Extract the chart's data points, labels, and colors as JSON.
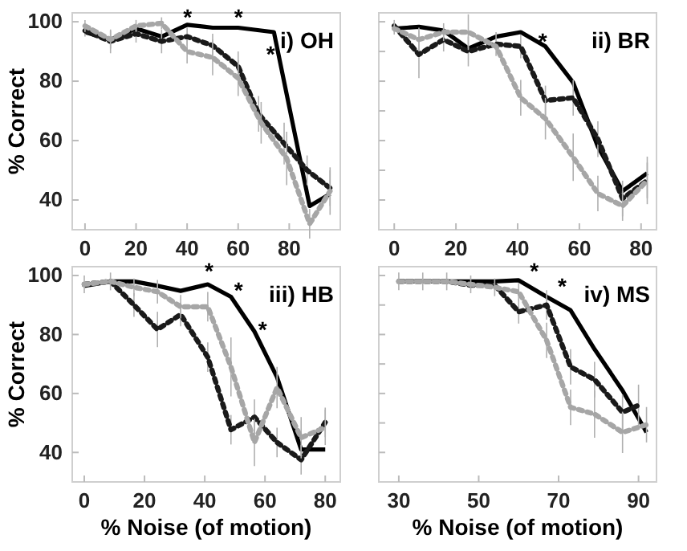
{
  "chart_data": [
    {
      "type": "line",
      "ylabel": "% Correct",
      "xlim": [
        -5,
        100
      ],
      "ylim": [
        30,
        103
      ],
      "xticks": [
        0,
        20,
        40,
        60,
        80
      ],
      "yticks": [
        40,
        60,
        80,
        100
      ],
      "annotations": [
        "i) OH",
        "*",
        "*",
        "*"
      ],
      "series": [
        {
          "color": "#000000",
          "line_style": "solid",
          "x": [
            0,
            10,
            20,
            30,
            40,
            50,
            60,
            74,
            88,
            96
          ],
          "values": [
            96.5,
            94,
            97.7,
            95,
            99,
            98,
            98,
            96.5,
            38,
            42
          ]
        },
        {
          "color": "#1a1a1a",
          "line_style": "dotted",
          "x": [
            0,
            10,
            20,
            30,
            40,
            50,
            60,
            68,
            78,
            87,
            96
          ],
          "values": [
            97,
            93.4,
            96,
            93.4,
            95,
            92,
            85,
            69,
            59,
            50,
            44
          ],
          "errors": [
            2,
            4,
            3,
            4,
            3,
            4,
            5,
            6,
            7,
            5,
            6
          ]
        },
        {
          "color": "#a6a6a6",
          "line_style": "dotted",
          "x": [
            0,
            10,
            20,
            30,
            40,
            50,
            60,
            69,
            79,
            88,
            96
          ],
          "values": [
            98.6,
            94,
            98.6,
            99.5,
            90,
            88,
            81,
            66,
            54,
            32,
            43
          ],
          "errors": [
            2,
            3,
            2,
            2,
            4,
            6,
            6,
            7,
            9,
            5,
            8
          ]
        }
      ]
    },
    {
      "type": "line",
      "xlim": [
        -5,
        85
      ],
      "ylim": [
        30,
        103
      ],
      "xticks": [
        0,
        20,
        40,
        60,
        80
      ],
      "yticks": [
        40,
        50,
        60,
        70,
        80,
        90,
        100
      ],
      "tick_labels": "x",
      "annotations": [
        "ii) BR",
        "*"
      ],
      "series": [
        {
          "color": "#000000",
          "line_style": "solid",
          "x": [
            0,
            8,
            16,
            24,
            33,
            41,
            49,
            58,
            66,
            74,
            82
          ],
          "values": [
            97.7,
            98.3,
            97,
            91,
            95,
            96.5,
            91.7,
            79.5,
            58,
            43,
            49
          ]
        },
        {
          "color": "#1a1a1a",
          "line_style": "dotted",
          "x": [
            0,
            8,
            16,
            24,
            33,
            41,
            49,
            58,
            66,
            74,
            82
          ],
          "values": [
            98.6,
            89,
            94,
            90,
            92.5,
            91.7,
            73.5,
            74.4,
            60.5,
            40.5,
            46.6
          ],
          "errors": [
            2,
            8,
            4,
            5,
            4,
            4,
            5,
            6,
            6,
            6,
            8
          ]
        },
        {
          "color": "#a6a6a6",
          "line_style": "dotted",
          "x": [
            0,
            8,
            16,
            24,
            33,
            41,
            49,
            58,
            66,
            74,
            82
          ],
          "values": [
            97.7,
            94,
            96.5,
            96.5,
            91.7,
            74.4,
            67.4,
            54.4,
            42.2,
            38,
            46.6
          ],
          "errors": [
            2,
            4,
            3,
            6,
            null,
            6,
            7,
            8,
            6,
            5,
            6
          ]
        }
      ]
    },
    {
      "type": "line",
      "xlabel": "% Noise (of motion)",
      "ylabel": "% Correct",
      "xlim": [
        -4,
        85
      ],
      "ylim": [
        30,
        103
      ],
      "xticks": [
        0,
        20,
        40,
        60,
        80
      ],
      "yticks": [
        40,
        60,
        80,
        100
      ],
      "annotations": [
        "iii) HB",
        "*",
        "*",
        "*"
      ],
      "series": [
        {
          "color": "#000000",
          "line_style": "solid",
          "x": [
            0,
            8.7,
            16.5,
            24.3,
            32,
            41,
            48.7,
            56.5,
            64,
            72,
            80
          ],
          "values": [
            96.5,
            98,
            98,
            96.5,
            94.8,
            97,
            92.8,
            81,
            65.5,
            41,
            41
          ]
        },
        {
          "color": "#1a1a1a",
          "line_style": "dotted",
          "x": [
            0,
            8.7,
            16.5,
            24.3,
            32,
            41,
            48.7,
            56.5,
            64,
            72,
            80
          ],
          "values": [
            97,
            98,
            90,
            81.7,
            86.8,
            72.3,
            47.7,
            52,
            43.4,
            37.5,
            50.2
          ],
          "errors": [
            null,
            null,
            4,
            6,
            4,
            5,
            5,
            6,
            5,
            5,
            5
          ]
        },
        {
          "color": "#a6a6a6",
          "line_style": "dotted",
          "x": [
            0,
            8.7,
            16.5,
            24.3,
            32,
            41,
            48.7,
            56.5,
            64,
            72,
            80
          ],
          "values": [
            97,
            98,
            96,
            94.5,
            89.4,
            89.4,
            69,
            43.4,
            62,
            45,
            48.5
          ],
          "errors": [
            3,
            3,
            3,
            4,
            4,
            5,
            10,
            8,
            7,
            7,
            6
          ]
        }
      ]
    },
    {
      "type": "line",
      "xlabel": "% Noise (of motion)",
      "xlim": [
        25,
        94.5
      ],
      "ylim": [
        30,
        103
      ],
      "xticks": [
        30,
        50,
        70,
        90
      ],
      "yticks": [
        40,
        50,
        60,
        70,
        80,
        90,
        100
      ],
      "tick_labels": "x",
      "annotations": [
        "iv) MS",
        "*",
        "*"
      ],
      "series": [
        {
          "color": "#000000",
          "line_style": "solid",
          "x": [
            30,
            36,
            42,
            48,
            54,
            60,
            67,
            73,
            79,
            86,
            92
          ],
          "values": [
            98,
            98,
            98,
            98,
            98,
            98.4,
            92.8,
            88.2,
            75,
            61,
            46.8
          ]
        },
        {
          "color": "#1a1a1a",
          "line_style": "dotted",
          "x": [
            30,
            36,
            42,
            48,
            54,
            60,
            67,
            73,
            79,
            86,
            90
          ],
          "values": [
            98,
            98,
            98,
            96.7,
            96.7,
            87.7,
            90,
            69,
            64.7,
            53.6,
            56
          ],
          "errors": [
            null,
            null,
            null,
            null,
            null,
            4,
            5,
            6,
            6,
            6,
            7
          ]
        },
        {
          "color": "#a6a6a6",
          "line_style": "dotted",
          "x": [
            30,
            36,
            42,
            48,
            54,
            60,
            67,
            73,
            79,
            86,
            92
          ],
          "values": [
            98,
            98,
            98,
            97,
            96,
            94.5,
            78,
            55.3,
            53,
            46.8,
            49.4
          ],
          "errors": [
            3,
            3,
            3,
            3,
            3,
            3,
            6,
            6,
            8,
            7,
            6
          ]
        }
      ]
    }
  ]
}
